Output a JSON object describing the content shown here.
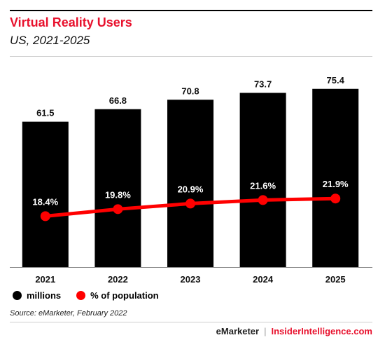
{
  "header": {
    "title": "Virtual Reality Users",
    "subtitle": "US, 2021-2025"
  },
  "chart_data": {
    "type": "bar",
    "categories": [
      "2021",
      "2022",
      "2023",
      "2024",
      "2025"
    ],
    "series": [
      {
        "name": "millions",
        "kind": "bar",
        "values": [
          61.5,
          66.8,
          70.8,
          73.7,
          75.4
        ],
        "labels": [
          "61.5",
          "66.8",
          "70.8",
          "73.7",
          "75.4"
        ],
        "color": "#000000"
      },
      {
        "name": "% of population",
        "kind": "line",
        "values": [
          18.4,
          19.8,
          20.9,
          21.6,
          21.9
        ],
        "labels": [
          "18.4%",
          "19.8%",
          "20.9%",
          "21.6%",
          "21.9%"
        ],
        "color": "#ff0000"
      }
    ],
    "title": "Virtual Reality Users",
    "subtitle": "US, 2021-2025",
    "ylim": [
      0,
      80
    ],
    "grid": false,
    "legend": "bottom-left"
  },
  "legend": {
    "items": [
      {
        "label": "millions",
        "color": "#000000"
      },
      {
        "label": "% of population",
        "color": "#ff0000"
      }
    ]
  },
  "footer": {
    "source": "Source: eMarketer, February 2022",
    "brand1": "eMarketer",
    "separator": "|",
    "brand2": "InsiderIntelligence.com"
  },
  "colors": {
    "accent": "#e8112d",
    "bar": "#000000",
    "line": "#ff0000"
  }
}
